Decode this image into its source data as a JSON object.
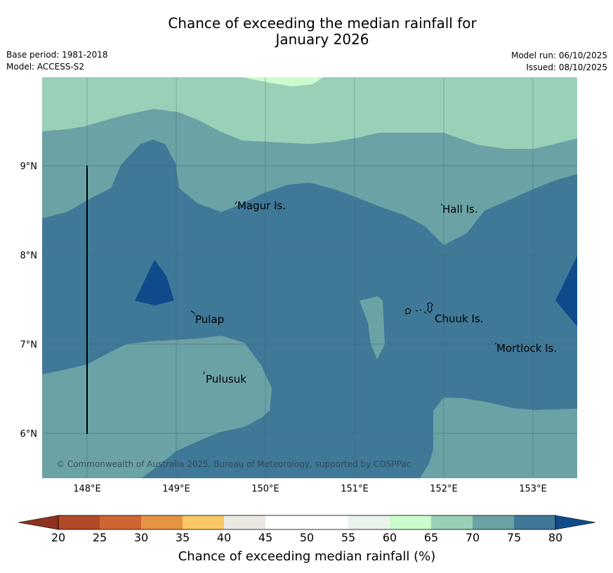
{
  "title_line1": "Chance of exceeding the median rainfall for",
  "title_line2": "January 2026",
  "meta_left": {
    "base_period": "Base period: 1981-2018",
    "model": "Model: ACCESS-S2"
  },
  "meta_right": {
    "model_run": "Model run: 06/10/2025",
    "issued": "Issued: 08/10/2025"
  },
  "lat_ticks": [
    "9°N",
    "8°N",
    "7°N",
    "6°N"
  ],
  "lon_ticks": [
    "148°E",
    "149°E",
    "150°E",
    "151°E",
    "152°E",
    "153°E"
  ],
  "places": [
    {
      "name": "Magur Is."
    },
    {
      "name": "Hall Is."
    },
    {
      "name": "Pulap"
    },
    {
      "name": "Chuuk Is."
    },
    {
      "name": "Mortlock Is."
    },
    {
      "name": "Pulusuk"
    }
  ],
  "copyright": "© Commonwealth of Australia 2025, Bureau of Meteorology, supported by COSPPac",
  "colorbar": {
    "label": "Chance of exceeding median rainfall (%)",
    "ticks": [
      "20",
      "25",
      "30",
      "35",
      "40",
      "45",
      "50",
      "55",
      "60",
      "65",
      "70",
      "75",
      "80"
    ],
    "colors": {
      "below_20": "#8e3120",
      "c20_25": "#b04a27",
      "c25_30": "#ce6532",
      "c30_35": "#e59444",
      "c35_40": "#fcc866",
      "c40_45": "#ece9e5",
      "c45_50": "#ffffff",
      "c50_55": "#ffffff",
      "c55_60": "#eaf4ec",
      "c60_65": "#cafccc",
      "c65_70": "#9bd0b8",
      "c70_75": "#6ba2a5",
      "c75_80": "#407898",
      "above_80": "#0f4a8a"
    }
  }
}
